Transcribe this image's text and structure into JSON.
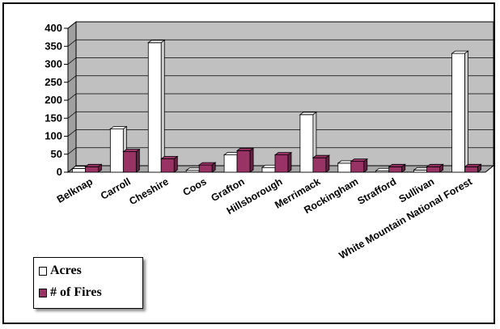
{
  "chart_data": {
    "type": "bar",
    "categories": [
      "Belknap",
      "Carroll",
      "Cheshire",
      "Coos",
      "Grafton",
      "Hillsborough",
      "Merrimack",
      "Rockingham",
      "Strafford",
      "Sullivan",
      "White Mountain National Forest"
    ],
    "series": [
      {
        "name": "Acres",
        "color": "#ffffff",
        "values": [
          10,
          120,
          360,
          5,
          48,
          13,
          160,
          25,
          4,
          6,
          330
        ]
      },
      {
        "name": "# of Fires",
        "color": "#993366",
        "values": [
          15,
          57,
          37,
          20,
          60,
          48,
          40,
          30,
          15,
          15,
          15
        ]
      }
    ],
    "ylim": [
      0,
      400
    ],
    "yticks": [
      "0",
      "50",
      "100",
      "150",
      "200",
      "250",
      "300",
      "350",
      "400"
    ],
    "grid": true,
    "legend_position": "bottom-left",
    "colors": {
      "plot_background": "#c0c0c0",
      "bar_front_shade_fires": "#993366"
    }
  }
}
